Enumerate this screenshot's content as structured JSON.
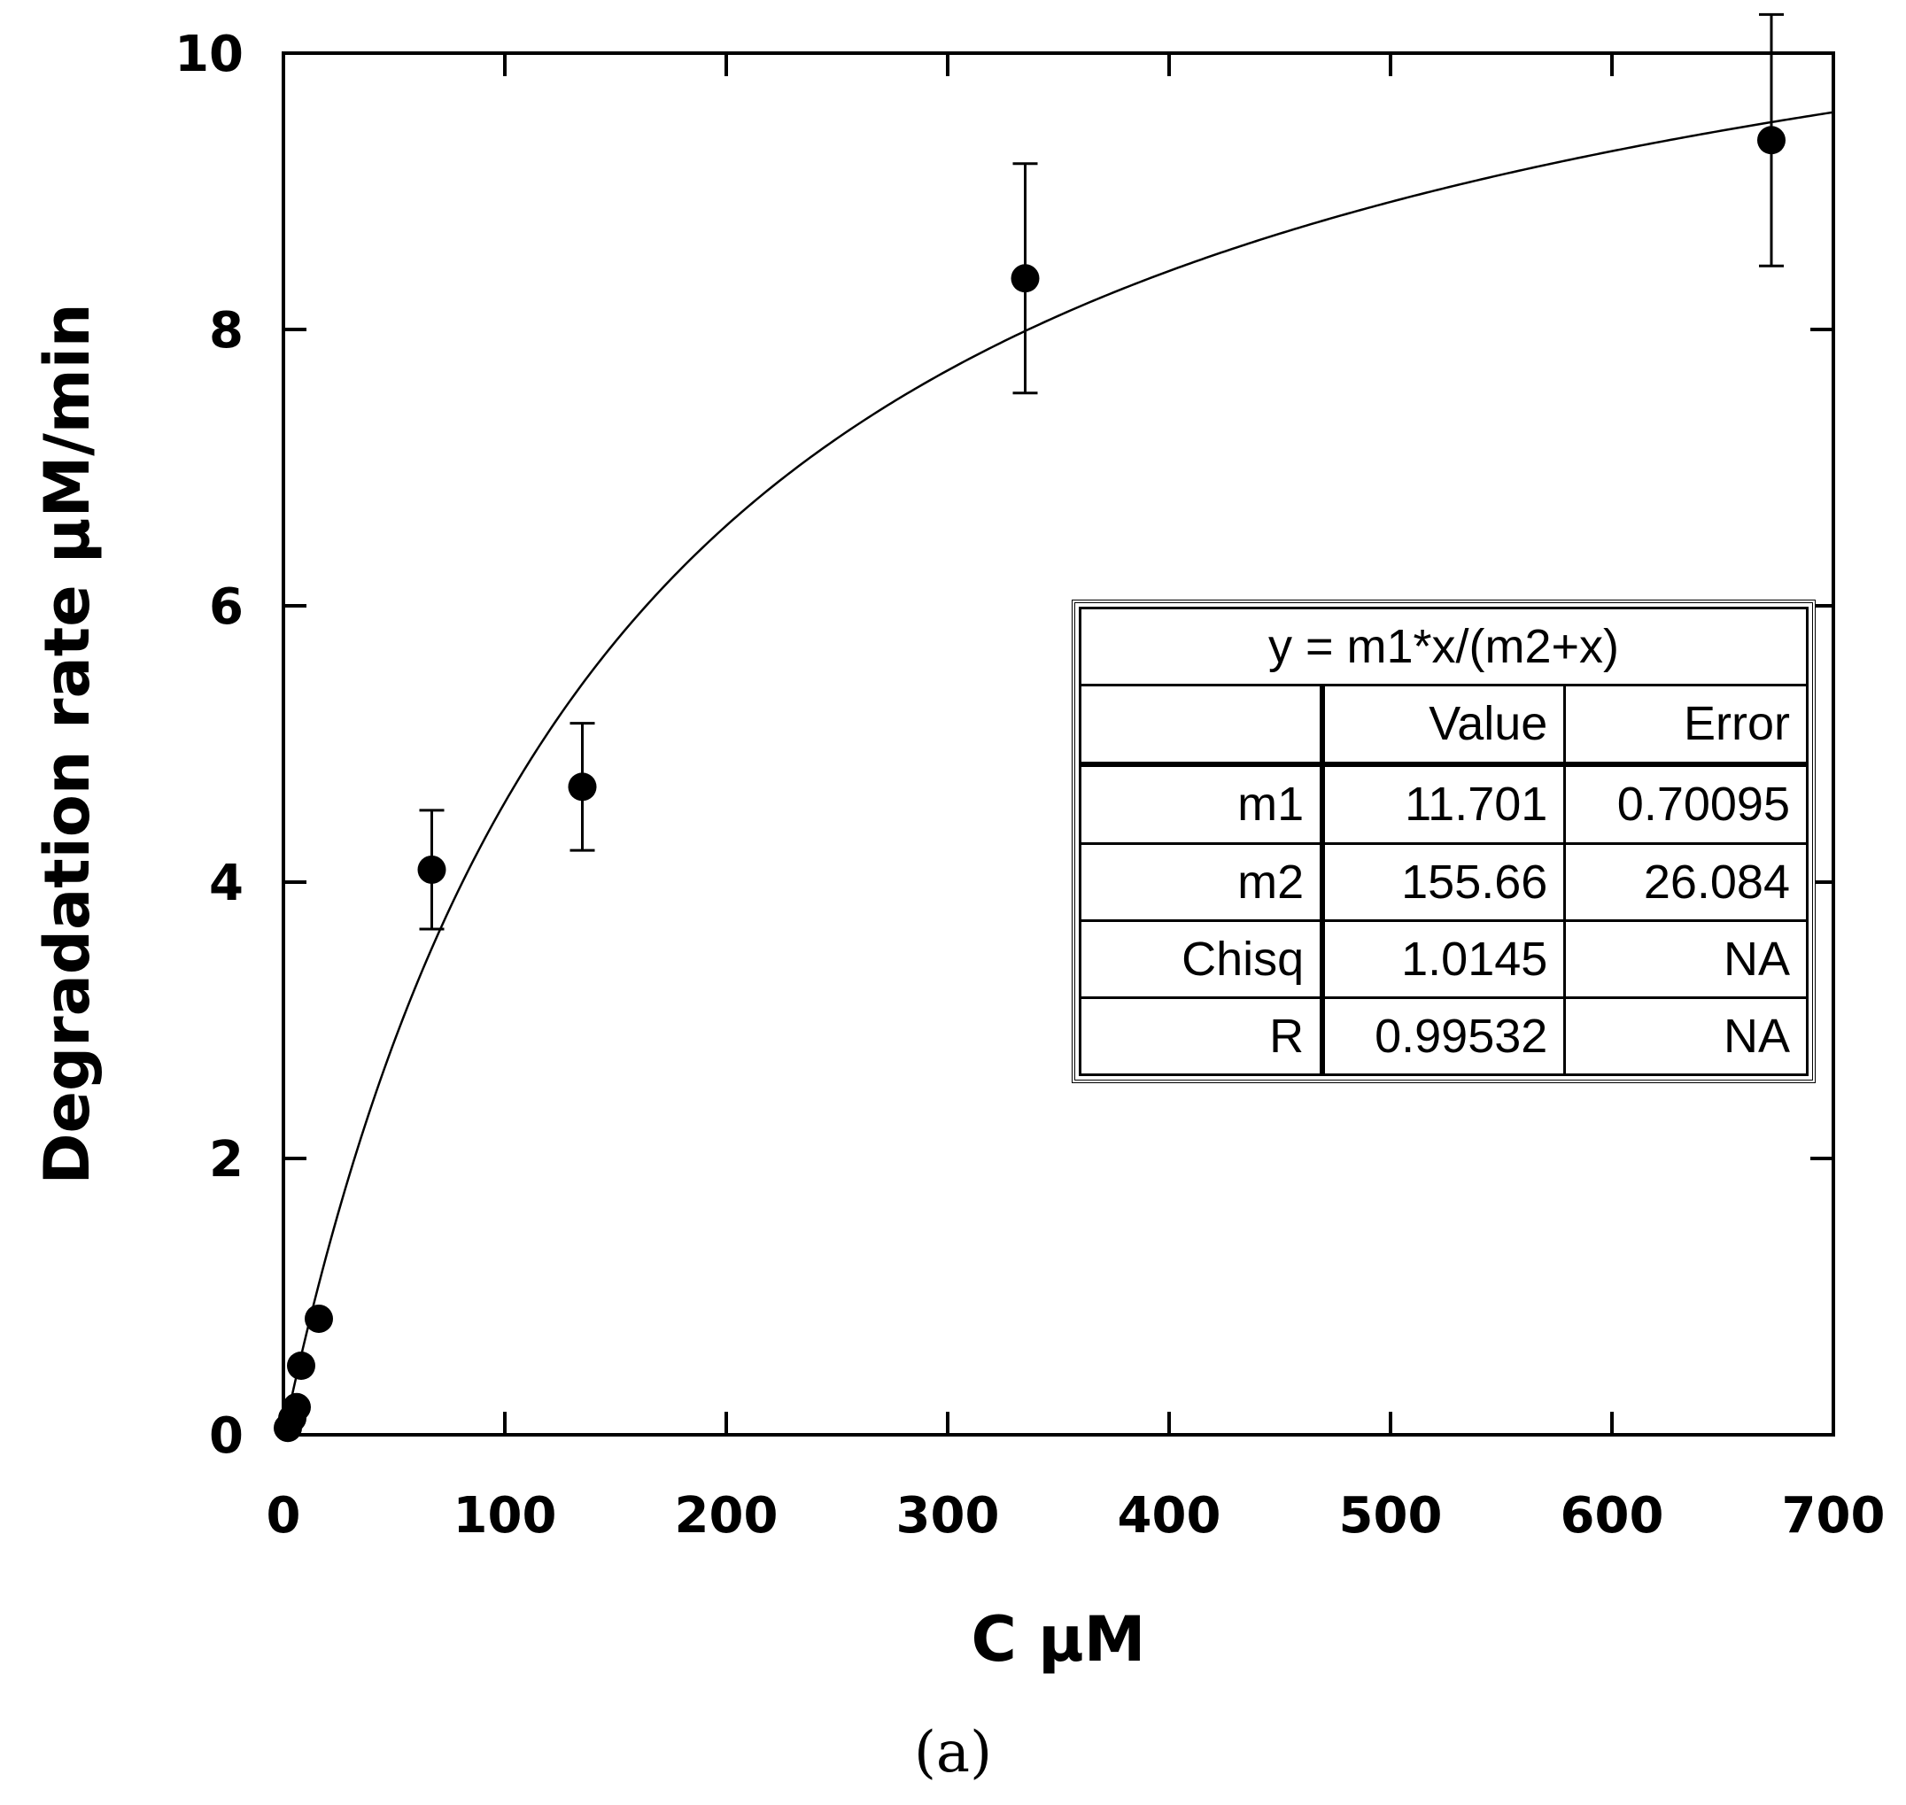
{
  "chart_data": {
    "type": "scatter",
    "xlabel": "C μM",
    "ylabel": "Degradation rate μM/min",
    "xlim": [
      0,
      700
    ],
    "ylim": [
      0,
      10
    ],
    "xticks": [
      0,
      100,
      200,
      300,
      400,
      500,
      600,
      700
    ],
    "yticks": [
      0,
      2,
      4,
      6,
      8,
      10
    ],
    "grid": false,
    "series": [
      {
        "type": "scatter",
        "points": [
          {
            "x": 2,
            "y": 0.05
          },
          {
            "x": 4,
            "y": 0.12
          },
          {
            "x": 6,
            "y": 0.2
          },
          {
            "x": 8,
            "y": 0.5
          },
          {
            "x": 16,
            "y": 0.84
          },
          {
            "x": 67,
            "y": 4.09,
            "err": 0.43
          },
          {
            "x": 135,
            "y": 4.69,
            "err": 0.46
          },
          {
            "x": 335,
            "y": 8.37,
            "err": 0.83
          },
          {
            "x": 672,
            "y": 9.37,
            "err": 0.91
          }
        ]
      },
      {
        "type": "fit",
        "equation": "y = m1*x/(m2+x)",
        "m1": 11.701,
        "m2": 155.66,
        "x_range": [
          0,
          700
        ]
      }
    ],
    "fit_table": {
      "title": "y = m1*x/(m2+x)",
      "columns": [
        "",
        "Value",
        "Error"
      ],
      "rows": [
        [
          "m1",
          "11.701",
          "0.70095"
        ],
        [
          "m2",
          "155.66",
          "26.084"
        ],
        [
          "Chisq",
          "1.0145",
          "NA"
        ],
        [
          "R",
          "0.99532",
          "NA"
        ]
      ]
    },
    "panel_label": "(a)"
  }
}
